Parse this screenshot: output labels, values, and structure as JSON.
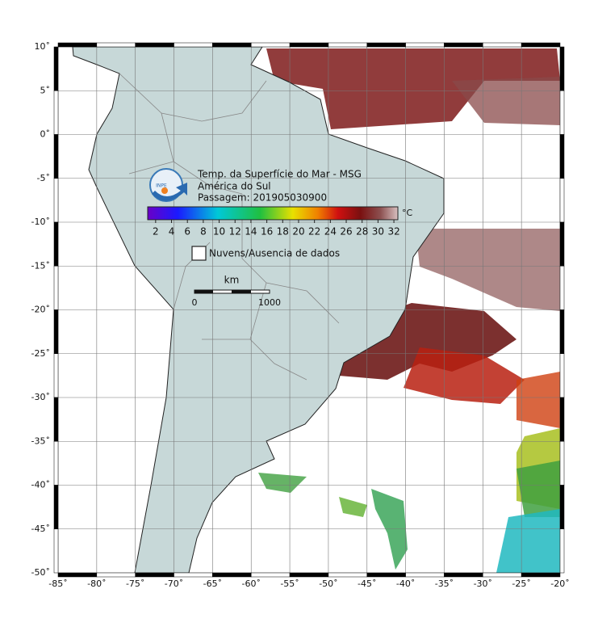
{
  "map": {
    "xlim": [
      -85,
      -20
    ],
    "ylim": [
      -50,
      10
    ],
    "xticks": [
      {
        "value": -85,
        "label": "-85˚"
      },
      {
        "value": -80,
        "label": "-80˚"
      },
      {
        "value": -75,
        "label": "-75˚"
      },
      {
        "value": -70,
        "label": "-70˚"
      },
      {
        "value": -65,
        "label": "-65˚"
      },
      {
        "value": -60,
        "label": "-60˚"
      },
      {
        "value": -55,
        "label": "-55˚"
      },
      {
        "value": -50,
        "label": "-50˚"
      },
      {
        "value": -45,
        "label": "-45˚"
      },
      {
        "value": -40,
        "label": "-40˚"
      },
      {
        "value": -35,
        "label": "-35˚"
      },
      {
        "value": -30,
        "label": "-30˚"
      },
      {
        "value": -25,
        "label": "-25˚"
      },
      {
        "value": -20,
        "label": "-20˚"
      }
    ],
    "yticks": [
      {
        "value": 10,
        "label": "10˚"
      },
      {
        "value": 5,
        "label": "5˚"
      },
      {
        "value": 0,
        "label": "0˚"
      },
      {
        "value": -5,
        "label": "-5˚"
      },
      {
        "value": -10,
        "label": "-10˚"
      },
      {
        "value": -15,
        "label": "-15˚"
      },
      {
        "value": -20,
        "label": "-20˚"
      },
      {
        "value": -25,
        "label": "-25˚"
      },
      {
        "value": -30,
        "label": "-30˚"
      },
      {
        "value": -35,
        "label": "-35˚"
      },
      {
        "value": -40,
        "label": "-40˚"
      },
      {
        "value": -45,
        "label": "-45˚"
      },
      {
        "value": -50,
        "label": "-50˚"
      }
    ],
    "grid": true
  },
  "header": {
    "logo": "INPE",
    "title": "Temp. da Superfície do Mar - MSG",
    "region": "América do Sul",
    "pass": "Passagem: 201905030900"
  },
  "colorbar": {
    "lim": [
      1,
      32.5
    ],
    "ticks": [
      2,
      4,
      6,
      8,
      10,
      12,
      14,
      16,
      18,
      20,
      22,
      24,
      26,
      28,
      30,
      32
    ],
    "unit": "°C"
  },
  "legend": {
    "label": "Nuvens/Ausencia de dados"
  },
  "scale_bar": {
    "unit": "km",
    "start": "0",
    "end": "1000"
  }
}
